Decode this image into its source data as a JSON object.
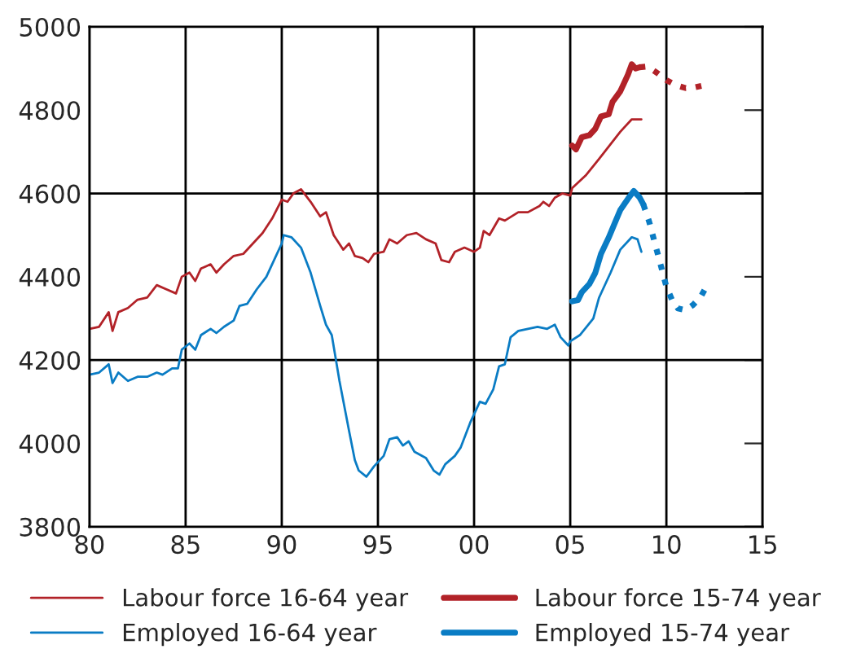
{
  "chart_data": {
    "type": "line",
    "xlim": [
      1980,
      2015
    ],
    "xticks": [
      {
        "value": 1980,
        "label": "80"
      },
      {
        "value": 1985,
        "label": "85"
      },
      {
        "value": 1990,
        "label": "90"
      },
      {
        "value": 1995,
        "label": "95"
      },
      {
        "value": 2000,
        "label": "00"
      },
      {
        "value": 2005,
        "label": "05"
      },
      {
        "value": 2010,
        "label": "10"
      },
      {
        "value": 2015,
        "label": "15"
      }
    ],
    "ylim": [
      3800,
      5000
    ],
    "yticks": [
      3800,
      4000,
      4200,
      4400,
      4600,
      4800,
      5000
    ],
    "grid": "x",
    "legend": "bottom",
    "ref_lines": [
      {
        "axis": "y",
        "value": 4200,
        "color": "#000000"
      },
      {
        "axis": "y",
        "value": 4600,
        "color": "#000000"
      }
    ],
    "series": [
      {
        "name": "Labour force 16-64 year",
        "color": "#b22228",
        "line_style": "solid",
        "x": [
          1980,
          1980.5,
          1981,
          1981.2,
          1981.5,
          1982,
          1982.5,
          1983,
          1983.5,
          1984,
          1984.5,
          1984.8,
          1985.2,
          1985.5,
          1985.8,
          1986.3,
          1986.6,
          1987,
          1987.5,
          1988,
          1988.5,
          1989,
          1989.5,
          1990,
          1990.3,
          1990.6,
          1991,
          1991.5,
          1992,
          1992.3,
          1992.7,
          1993.2,
          1993.5,
          1993.8,
          1994.2,
          1994.5,
          1994.8,
          1995.3,
          1995.6,
          1996,
          1996.5,
          1997,
          1997.5,
          1998,
          1998.3,
          1998.7,
          1999,
          1999.5,
          2000,
          2000.3,
          2000.5,
          2000.8,
          2001.3,
          2001.6,
          2002.3,
          2002.8,
          2003.4,
          2003.6,
          2003.9,
          2004.2,
          2004.6,
          2005,
          2005.1,
          2005.8,
          2006.5,
          2007.6,
          2008.2,
          2008.7
        ],
        "values": [
          4275,
          4280,
          4315,
          4270,
          4315,
          4325,
          4345,
          4350,
          4380,
          4370,
          4360,
          4400,
          4410,
          4390,
          4420,
          4430,
          4410,
          4430,
          4450,
          4455,
          4480,
          4505,
          4540,
          4585,
          4580,
          4600,
          4610,
          4580,
          4545,
          4555,
          4500,
          4465,
          4480,
          4450,
          4445,
          4435,
          4455,
          4460,
          4490,
          4480,
          4500,
          4505,
          4490,
          4480,
          4440,
          4435,
          4460,
          4470,
          4460,
          4470,
          4510,
          4500,
          4540,
          4535,
          4555,
          4555,
          4570,
          4580,
          4570,
          4590,
          4600,
          4595,
          4613,
          4643,
          4683,
          4748,
          4778,
          4778
        ]
      },
      {
        "name": "Employed 16-64 year",
        "color": "#0a7cc4",
        "line_style": "solid",
        "x": [
          1980,
          1980.5,
          1981,
          1981.2,
          1981.5,
          1982,
          1982.5,
          1983,
          1983.5,
          1983.8,
          1984.3,
          1984.6,
          1984.8,
          1985.2,
          1985.5,
          1985.8,
          1986.3,
          1986.6,
          1987,
          1987.5,
          1987.8,
          1988.2,
          1988.7,
          1989.2,
          1989.6,
          1990,
          1990.1,
          1990.5,
          1991,
          1991.5,
          1992,
          1992.3,
          1992.6,
          1993,
          1993.5,
          1993.8,
          1994,
          1994.4,
          1994.8,
          1995.3,
          1995.6,
          1996,
          1996.3,
          1996.6,
          1996.9,
          1997.5,
          1997.9,
          1998.2,
          1998.5,
          1999,
          1999.3,
          1999.8,
          2000.3,
          2000.6,
          2001,
          2001.3,
          2001.6,
          2001.9,
          2002.3,
          2002.8,
          2003.3,
          2003.8,
          2004.2,
          2004.5,
          2004.9,
          2005,
          2005.5,
          2006.2,
          2006.5,
          2007.1,
          2007.6,
          2008.2,
          2008.5,
          2008.7
        ],
        "values": [
          4165,
          4170,
          4190,
          4145,
          4170,
          4150,
          4160,
          4160,
          4170,
          4165,
          4180,
          4180,
          4225,
          4240,
          4225,
          4260,
          4275,
          4265,
          4280,
          4295,
          4330,
          4335,
          4370,
          4400,
          4440,
          4480,
          4500,
          4495,
          4470,
          4410,
          4330,
          4285,
          4260,
          4150,
          4030,
          3960,
          3935,
          3920,
          3945,
          3970,
          4010,
          4015,
          3995,
          4005,
          3980,
          3965,
          3935,
          3925,
          3950,
          3970,
          3990,
          4050,
          4100,
          4095,
          4130,
          4185,
          4190,
          4255,
          4270,
          4275,
          4280,
          4275,
          4285,
          4255,
          4235,
          4245,
          4260,
          4300,
          4350,
          4410,
          4465,
          4495,
          4490,
          4460
        ]
      },
      {
        "name": "Labour force 15-74 year",
        "color": "#b22228",
        "line_style": "solid",
        "x": [
          2005.1,
          2005.3,
          2005.6,
          2006.0,
          2006.3,
          2006.6,
          2007.0,
          2007.2,
          2007.6,
          2008.0,
          2008.2,
          2008.4,
          2008.6
        ],
        "values": [
          4715,
          4706,
          4735,
          4740,
          4755,
          4785,
          4790,
          4820,
          4845,
          4885,
          4910,
          4900,
          4903
        ]
      },
      {
        "color": "#b22228",
        "line_style": "dotted",
        "x": [
          2008.6,
          2009.0,
          2009.5,
          2010.0,
          2010.5,
          2011.0,
          2011.5,
          2012.0
        ],
        "values": [
          4903,
          4905,
          4890,
          4872,
          4860,
          4853,
          4855,
          4860
        ]
      },
      {
        "name": "Employed 15-74 year",
        "color": "#0a7cc4",
        "line_style": "solid",
        "x": [
          2005.1,
          2005.4,
          2005.6,
          2006.0,
          2006.3,
          2006.6,
          2007.0,
          2007.3,
          2007.6,
          2008.0,
          2008.3,
          2008.6,
          2008.8
        ],
        "values": [
          4341,
          4344,
          4363,
          4383,
          4409,
          4455,
          4494,
          4527,
          4560,
          4587,
          4606,
          4591,
          4574
        ]
      },
      {
        "color": "#0a7cc4",
        "line_style": "dotted",
        "x": [
          2008.8,
          2009.1,
          2009.4,
          2009.7,
          2010.0,
          2010.3,
          2010.6,
          2011.0,
          2011.4,
          2011.8,
          2012.0
        ],
        "values": [
          4574,
          4533,
          4481,
          4429,
          4376,
          4344,
          4324,
          4320,
          4333,
          4353,
          4370
        ]
      }
    ]
  }
}
